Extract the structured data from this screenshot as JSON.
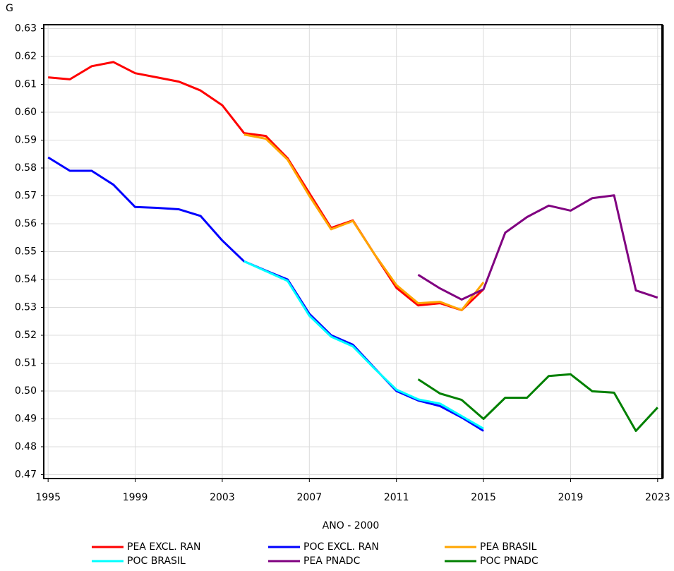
{
  "chart_data": {
    "type": "line",
    "y_label": "G",
    "x_label": "ANO - 2000",
    "x": [
      1995,
      1996,
      1997,
      1998,
      1999,
      2000,
      2001,
      2002,
      2003,
      2004,
      2005,
      2006,
      2007,
      2008,
      2009,
      2010,
      2011,
      2012,
      2013,
      2014,
      2015,
      2016,
      2017,
      2018,
      2019,
      2020,
      2021,
      2022,
      2023
    ],
    "series": [
      {
        "name": "PEA EXCL. RAN",
        "color": "#ff0000",
        "values": [
          0.6125,
          0.6118,
          0.6165,
          0.618,
          0.614,
          0.6125,
          0.611,
          0.6078,
          0.6025,
          0.5925,
          0.5915,
          0.5835,
          0.571,
          0.5585,
          0.5612,
          0.549,
          0.537,
          0.5307,
          0.5315,
          0.529,
          0.5365,
          null,
          null,
          null,
          null,
          null,
          null,
          null,
          null
        ]
      },
      {
        "name": "POC EXCL. RAN",
        "color": "#0000ff",
        "values": [
          0.5838,
          0.579,
          0.579,
          0.574,
          0.566,
          0.5657,
          0.5652,
          0.5628,
          0.554,
          0.5465,
          0.5432,
          0.54,
          0.5277,
          0.52,
          0.5166,
          0.5082,
          0.5,
          0.4966,
          0.4946,
          0.4905,
          0.4857,
          null,
          null,
          null,
          null,
          null,
          null,
          null,
          null
        ]
      },
      {
        "name": "PEA BRASIL",
        "color": "#ffa500",
        "values": [
          null,
          null,
          null,
          null,
          null,
          null,
          null,
          null,
          null,
          0.592,
          0.5905,
          0.583,
          0.57,
          0.558,
          0.561,
          0.549,
          0.538,
          0.5315,
          0.532,
          0.529,
          0.539,
          null,
          null,
          null,
          null,
          null,
          null,
          null,
          null
        ]
      },
      {
        "name": "POC BRASIL",
        "color": "#00ffff",
        "values": [
          null,
          null,
          null,
          null,
          null,
          null,
          null,
          null,
          null,
          0.5465,
          0.543,
          0.5395,
          0.527,
          0.5195,
          0.516,
          0.508,
          0.5005,
          0.497,
          0.4955,
          0.491,
          0.4865,
          null,
          null,
          null,
          null,
          null,
          null,
          null,
          null
        ]
      },
      {
        "name": "PEA PNADC",
        "color": "#800080",
        "values": [
          null,
          null,
          null,
          null,
          null,
          null,
          null,
          null,
          null,
          null,
          null,
          null,
          null,
          null,
          null,
          null,
          null,
          0.5417,
          0.5368,
          0.5328,
          0.5365,
          0.5568,
          0.5624,
          0.5665,
          0.5647,
          0.5692,
          0.5702,
          0.5361,
          0.5335
        ]
      },
      {
        "name": "POC PNADC",
        "color": "#008000",
        "values": [
          null,
          null,
          null,
          null,
          null,
          null,
          null,
          null,
          null,
          null,
          null,
          null,
          null,
          null,
          null,
          null,
          null,
          0.5042,
          0.4991,
          0.4968,
          0.49,
          0.4976,
          0.4976,
          0.5054,
          0.506,
          0.4999,
          0.4994,
          0.4857,
          0.4941
        ]
      }
    ],
    "xlim": [
      1994.8,
      2023.2
    ],
    "xticks": [
      1995,
      1999,
      2003,
      2007,
      2011,
      2015,
      2019,
      2023
    ],
    "ylim": [
      0.4686,
      0.6314
    ],
    "yticks": [
      0.47,
      0.48,
      0.49,
      {
        "value": 0.5,
        "label": "0.50"
      },
      0.51,
      0.52,
      0.53,
      0.54,
      0.55,
      0.56,
      0.57,
      0.58,
      0.59,
      {
        "value": 0.6,
        "label": "0.60"
      },
      0.61,
      0.62,
      0.63
    ],
    "grid": true,
    "legend": "bottom"
  }
}
